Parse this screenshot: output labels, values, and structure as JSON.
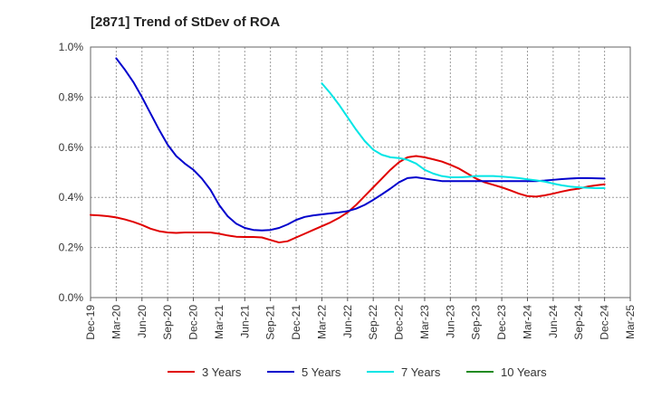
{
  "chart_data": {
    "type": "line",
    "title": "[2871]  Trend of StDev of ROA",
    "xlabel": "",
    "ylabel": "",
    "x_tick_labels": [
      "Dec-19",
      "Mar-20",
      "Jun-20",
      "Sep-20",
      "Dec-20",
      "Mar-21",
      "Jun-21",
      "Sep-21",
      "Dec-21",
      "Mar-22",
      "Jun-22",
      "Sep-22",
      "Dec-22",
      "Mar-23",
      "Jun-23",
      "Sep-23",
      "Dec-23",
      "Mar-24",
      "Jun-24",
      "Sep-24",
      "Dec-24",
      "Mar-25"
    ],
    "y_tick_labels": [
      "0.0%",
      "0.2%",
      "0.4%",
      "0.6%",
      "0.8%",
      "1.0%"
    ],
    "ylim": [
      0,
      1.0
    ],
    "y_unit": "%",
    "grid": "horizontal dashed",
    "legend_position": "bottom",
    "series": [
      {
        "name": "3 Years",
        "color": "#e00000",
        "points": [
          [
            "Dec-19",
            0.33
          ],
          [
            "Jan-20",
            0.328
          ],
          [
            "Feb-20",
            0.325
          ],
          [
            "Mar-20",
            0.32
          ],
          [
            "Apr-20",
            0.312
          ],
          [
            "May-20",
            0.302
          ],
          [
            "Jun-20",
            0.29
          ],
          [
            "Jul-20",
            0.275
          ],
          [
            "Aug-20",
            0.265
          ],
          [
            "Sep-20",
            0.26
          ],
          [
            "Oct-20",
            0.258
          ],
          [
            "Nov-20",
            0.26
          ],
          [
            "Dec-20",
            0.26
          ],
          [
            "Jan-21",
            0.26
          ],
          [
            "Feb-21",
            0.26
          ],
          [
            "Mar-21",
            0.255
          ],
          [
            "Apr-21",
            0.248
          ],
          [
            "May-21",
            0.243
          ],
          [
            "Jun-21",
            0.242
          ],
          [
            "Jul-21",
            0.242
          ],
          [
            "Aug-21",
            0.24
          ],
          [
            "Sep-21",
            0.23
          ],
          [
            "Oct-21",
            0.22
          ],
          [
            "Nov-21",
            0.225
          ],
          [
            "Dec-21",
            0.24
          ],
          [
            "Jan-22",
            0.255
          ],
          [
            "Feb-22",
            0.27
          ],
          [
            "Mar-22",
            0.285
          ],
          [
            "Apr-22",
            0.3
          ],
          [
            "May-22",
            0.318
          ],
          [
            "Jun-22",
            0.34
          ],
          [
            "Jul-22",
            0.37
          ],
          [
            "Aug-22",
            0.405
          ],
          [
            "Sep-22",
            0.44
          ],
          [
            "Oct-22",
            0.475
          ],
          [
            "Nov-22",
            0.51
          ],
          [
            "Dec-22",
            0.54
          ],
          [
            "Jan-23",
            0.56
          ],
          [
            "Feb-23",
            0.565
          ],
          [
            "Mar-23",
            0.56
          ],
          [
            "Apr-23",
            0.552
          ],
          [
            "May-23",
            0.543
          ],
          [
            "Jun-23",
            0.53
          ],
          [
            "Jul-23",
            0.515
          ],
          [
            "Aug-23",
            0.495
          ],
          [
            "Sep-23",
            0.475
          ],
          [
            "Oct-23",
            0.46
          ],
          [
            "Nov-23",
            0.45
          ],
          [
            "Dec-23",
            0.44
          ],
          [
            "Jan-24",
            0.428
          ],
          [
            "Feb-24",
            0.415
          ],
          [
            "Mar-24",
            0.405
          ],
          [
            "Apr-24",
            0.403
          ],
          [
            "May-24",
            0.408
          ],
          [
            "Jun-24",
            0.415
          ],
          [
            "Jul-24",
            0.423
          ],
          [
            "Aug-24",
            0.43
          ],
          [
            "Sep-24",
            0.435
          ],
          [
            "Oct-24",
            0.443
          ],
          [
            "Nov-24",
            0.448
          ],
          [
            "Dec-24",
            0.452
          ]
        ]
      },
      {
        "name": "5 Years",
        "color": "#0000cc",
        "points": [
          [
            "Mar-20",
            0.955
          ],
          [
            "Apr-20",
            0.91
          ],
          [
            "May-20",
            0.86
          ],
          [
            "Jun-20",
            0.8
          ],
          [
            "Jul-20",
            0.735
          ],
          [
            "Aug-20",
            0.67
          ],
          [
            "Sep-20",
            0.61
          ],
          [
            "Oct-20",
            0.565
          ],
          [
            "Nov-20",
            0.535
          ],
          [
            "Dec-20",
            0.51
          ],
          [
            "Jan-21",
            0.475
          ],
          [
            "Feb-21",
            0.43
          ],
          [
            "Mar-21",
            0.37
          ],
          [
            "Apr-21",
            0.325
          ],
          [
            "May-21",
            0.295
          ],
          [
            "Jun-21",
            0.278
          ],
          [
            "Jul-21",
            0.27
          ],
          [
            "Aug-21",
            0.268
          ],
          [
            "Sep-21",
            0.27
          ],
          [
            "Oct-21",
            0.278
          ],
          [
            "Nov-21",
            0.292
          ],
          [
            "Dec-21",
            0.31
          ],
          [
            "Jan-22",
            0.322
          ],
          [
            "Feb-22",
            0.328
          ],
          [
            "Mar-22",
            0.332
          ],
          [
            "Apr-22",
            0.336
          ],
          [
            "May-22",
            0.34
          ],
          [
            "Jun-22",
            0.345
          ],
          [
            "Jul-22",
            0.355
          ],
          [
            "Aug-22",
            0.37
          ],
          [
            "Sep-22",
            0.39
          ],
          [
            "Oct-22",
            0.412
          ],
          [
            "Nov-22",
            0.435
          ],
          [
            "Dec-22",
            0.46
          ],
          [
            "Jan-23",
            0.477
          ],
          [
            "Feb-23",
            0.48
          ],
          [
            "Mar-23",
            0.475
          ],
          [
            "Apr-23",
            0.47
          ],
          [
            "May-23",
            0.465
          ],
          [
            "Jun-23",
            0.465
          ],
          [
            "Jul-23",
            0.465
          ],
          [
            "Aug-23",
            0.465
          ],
          [
            "Sep-23",
            0.465
          ],
          [
            "Oct-23",
            0.465
          ],
          [
            "Nov-23",
            0.465
          ],
          [
            "Dec-23",
            0.465
          ],
          [
            "Jan-24",
            0.465
          ],
          [
            "Feb-24",
            0.465
          ],
          [
            "Mar-24",
            0.465
          ],
          [
            "Apr-24",
            0.465
          ],
          [
            "May-24",
            0.467
          ],
          [
            "Jun-24",
            0.47
          ],
          [
            "Jul-24",
            0.473
          ],
          [
            "Aug-24",
            0.475
          ],
          [
            "Sep-24",
            0.477
          ],
          [
            "Oct-24",
            0.477
          ],
          [
            "Nov-24",
            0.476
          ],
          [
            "Dec-24",
            0.475
          ]
        ]
      },
      {
        "name": "7 Years",
        "color": "#00e5e5",
        "points": [
          [
            "Mar-22",
            0.855
          ],
          [
            "Apr-22",
            0.815
          ],
          [
            "May-22",
            0.77
          ],
          [
            "Jun-22",
            0.72
          ],
          [
            "Jul-22",
            0.67
          ],
          [
            "Aug-22",
            0.625
          ],
          [
            "Sep-22",
            0.59
          ],
          [
            "Oct-22",
            0.57
          ],
          [
            "Nov-22",
            0.56
          ],
          [
            "Dec-22",
            0.557
          ],
          [
            "Jan-23",
            0.55
          ],
          [
            "Feb-23",
            0.535
          ],
          [
            "Mar-23",
            0.51
          ],
          [
            "Apr-23",
            0.495
          ],
          [
            "May-23",
            0.485
          ],
          [
            "Jun-23",
            0.48
          ],
          [
            "Jul-23",
            0.48
          ],
          [
            "Aug-23",
            0.482
          ],
          [
            "Sep-23",
            0.485
          ],
          [
            "Oct-23",
            0.485
          ],
          [
            "Nov-23",
            0.485
          ],
          [
            "Dec-23",
            0.483
          ],
          [
            "Jan-24",
            0.48
          ],
          [
            "Feb-24",
            0.477
          ],
          [
            "Mar-24",
            0.472
          ],
          [
            "Apr-24",
            0.468
          ],
          [
            "May-24",
            0.463
          ],
          [
            "Jun-24",
            0.455
          ],
          [
            "Jul-24",
            0.448
          ],
          [
            "Aug-24",
            0.443
          ],
          [
            "Sep-24",
            0.44
          ],
          [
            "Oct-24",
            0.438
          ],
          [
            "Nov-24",
            0.437
          ],
          [
            "Dec-24",
            0.437
          ]
        ]
      },
      {
        "name": "10 Years",
        "color": "#228b22",
        "points": []
      }
    ]
  }
}
